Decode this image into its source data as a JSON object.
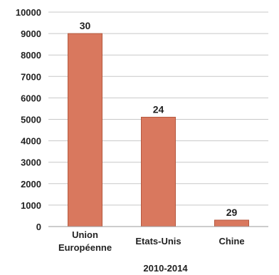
{
  "chart_data": {
    "type": "bar",
    "categories": [
      [
        "Union",
        "Européenne"
      ],
      [
        "Etats-Unis"
      ],
      [
        "Chine"
      ]
    ],
    "values": [
      9000,
      5100,
      300
    ],
    "data_labels": [
      "30",
      "24",
      "29"
    ],
    "ylim": [
      0,
      10000
    ],
    "yticks": [
      0,
      1000,
      2000,
      3000,
      4000,
      5000,
      6000,
      7000,
      8000,
      9000,
      10000
    ],
    "xlabel": "2010-2014",
    "grid": true,
    "legend": "none",
    "colors": {
      "bar_fill": "#d9785e",
      "bar_stroke": "#b5593f"
    }
  }
}
